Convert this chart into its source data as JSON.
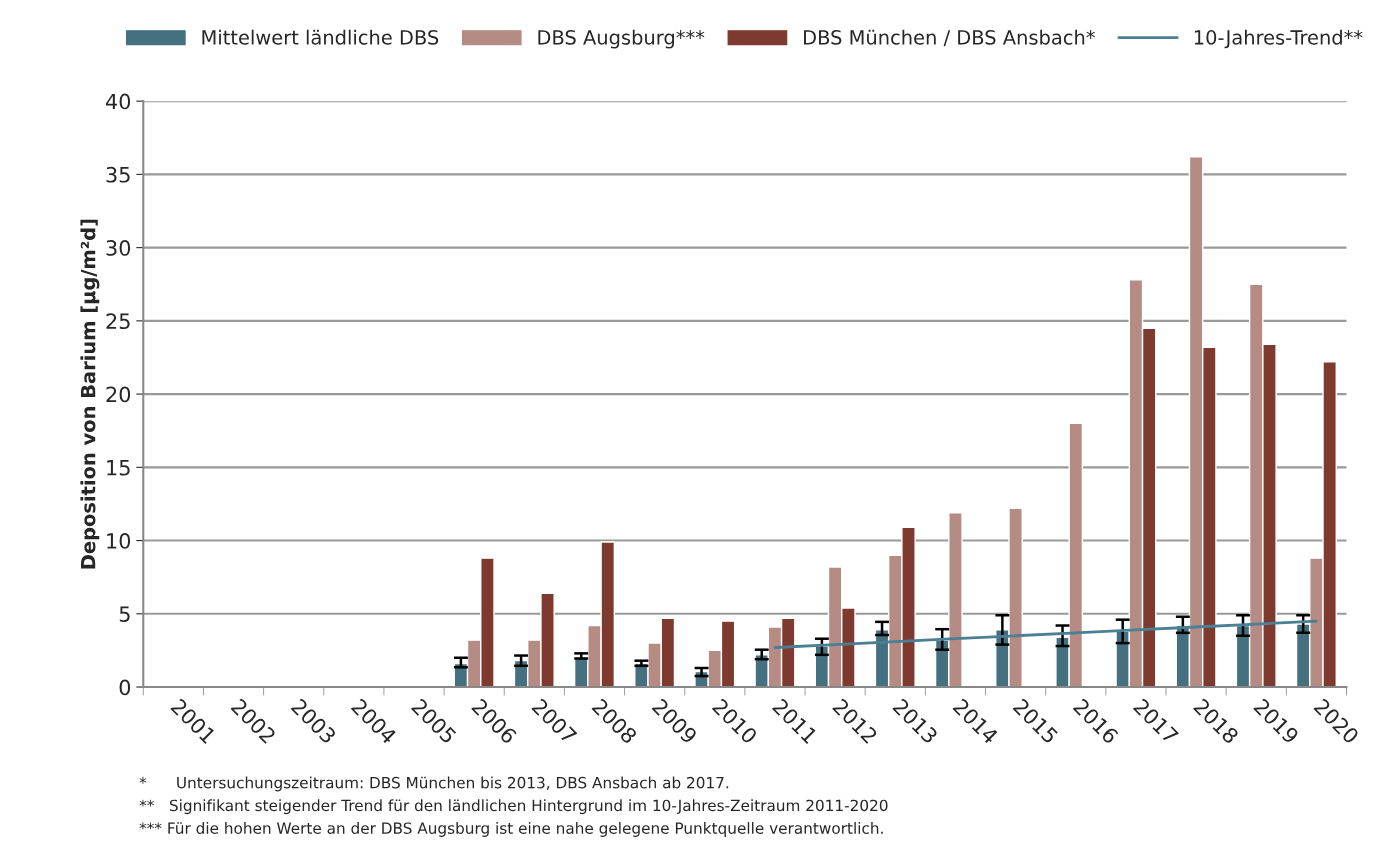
{
  "chart_data": {
    "type": "bar",
    "ylabel": "Deposition von Barium [µg/m²d]",
    "categories": [
      "2001",
      "2002",
      "2003",
      "2004",
      "2005",
      "2006",
      "2007",
      "2008",
      "2009",
      "2010",
      "2011",
      "2012",
      "2013",
      "2014",
      "2015",
      "2016",
      "2017",
      "2018",
      "2019",
      "2020"
    ],
    "series": [
      {
        "name": "Mittelwert ländliche DBS",
        "color": "#44707f",
        "values": [
          null,
          null,
          null,
          null,
          null,
          1.6,
          1.8,
          2.0,
          1.6,
          1.05,
          2.2,
          2.8,
          3.9,
          3.2,
          3.9,
          3.4,
          3.8,
          4.2,
          4.2,
          4.3
        ],
        "errors": [
          null,
          null,
          null,
          null,
          null,
          [
            1.35,
            2.0
          ],
          [
            1.45,
            2.15
          ],
          [
            1.95,
            2.3
          ],
          [
            1.45,
            1.8
          ],
          [
            0.75,
            1.3
          ],
          [
            1.9,
            2.55
          ],
          [
            2.2,
            3.3
          ],
          [
            3.55,
            4.45
          ],
          [
            2.55,
            3.95
          ],
          [
            2.9,
            4.9
          ],
          [
            2.8,
            4.2
          ],
          [
            3.0,
            4.6
          ],
          [
            3.7,
            4.8
          ],
          [
            3.5,
            4.9
          ],
          [
            3.7,
            4.9
          ]
        ]
      },
      {
        "name": "DBS Augsburg***",
        "color": "#b58b84",
        "values": [
          null,
          null,
          null,
          null,
          null,
          3.2,
          3.2,
          4.2,
          3.0,
          2.5,
          4.1,
          8.2,
          9.0,
          11.9,
          12.2,
          18.0,
          27.8,
          36.2,
          27.5,
          8.8
        ]
      },
      {
        "name": "DBS München / DBS Ansbach*",
        "color": "#7f3a30",
        "values": [
          null,
          null,
          null,
          null,
          null,
          8.8,
          6.4,
          9.9,
          4.7,
          4.5,
          4.7,
          5.4,
          10.9,
          null,
          null,
          null,
          24.5,
          23.2,
          23.4,
          22.2
        ]
      },
      {
        "name": "10-Jahres-Trend**",
        "type": "line",
        "color": "#4a7f94",
        "values": [
          null,
          null,
          null,
          null,
          null,
          null,
          null,
          null,
          null,
          null,
          2.7,
          2.9,
          3.1,
          3.3,
          3.5,
          3.7,
          3.9,
          4.1,
          4.3,
          4.5
        ]
      }
    ],
    "ylim": [
      0,
      40
    ],
    "yticks": [
      0,
      5,
      10,
      15,
      20,
      25,
      30,
      35,
      40
    ],
    "grid": "y",
    "legend": "top",
    "annotations": [
      "*      Untersuchungszeitraum: DBS München bis 2013, DBS Ansbach ab 2017.",
      "**   Signifikant steigender Trend für den ländlichen Hintergrund im 10-Jahres-Zeitraum 2011-2020",
      "*** Für die hohen Werte an der DBS Augsburg ist eine nahe gelegene Punktquelle verantwortlich."
    ]
  }
}
